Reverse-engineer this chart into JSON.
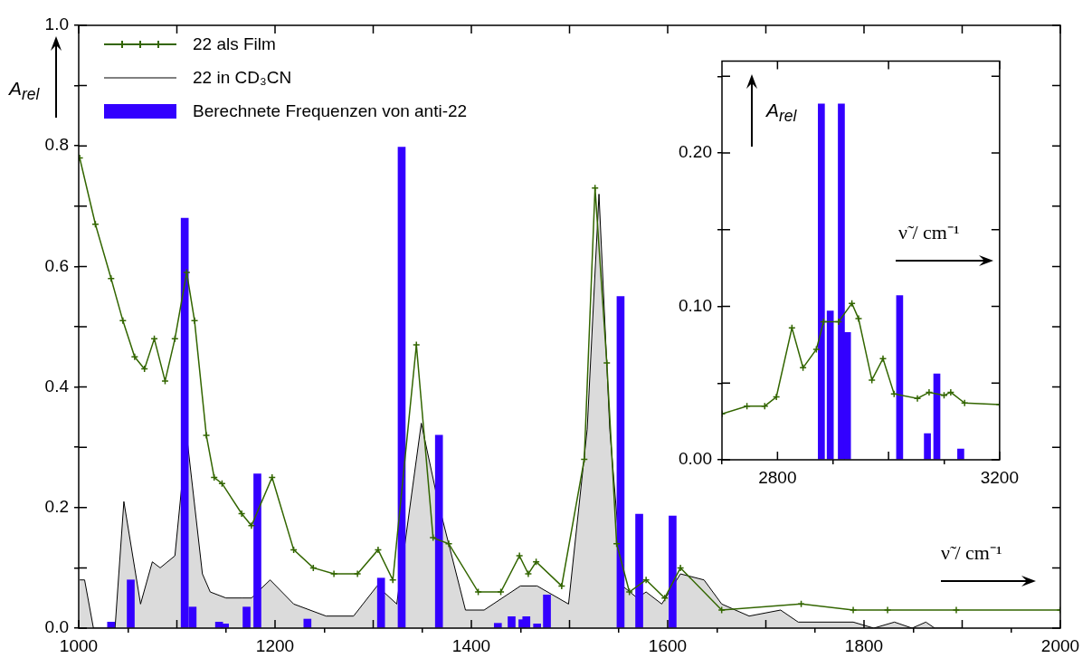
{
  "chart_data": [
    {
      "type": "line",
      "xlabel": "ν̃ / cm⁻¹",
      "ylabel": "A$_{rel}$",
      "legend": "top left",
      "marker": "cross",
      "grid": false,
      "xlim": [
        1000,
        2000
      ],
      "ylim": [
        0,
        1
      ],
      "xticks": [
        1000,
        {
          "value": 1100,
          "label": null
        },
        1200,
        {
          "value": 1300,
          "label": null
        },
        1400,
        {
          "value": 1500,
          "label": null
        },
        1600,
        {
          "value": 1700,
          "label": null
        },
        1800,
        {
          "value": 1900,
          "label": null
        },
        2000
      ],
      "yticks": [
        {
          "value": 0,
          "label": "0.0"
        },
        {
          "value": 0.1,
          "label": null
        },
        {
          "value": 0.2,
          "label": "0.2"
        },
        {
          "value": 0.3,
          "label": null
        },
        {
          "value": 0.4,
          "label": "0.4"
        },
        {
          "value": 0.5,
          "label": null
        },
        {
          "value": 0.6,
          "label": "0.6"
        },
        {
          "value": 0.7,
          "label": null
        },
        {
          "value": 0.8,
          "label": "0.8"
        },
        {
          "value": 0.9,
          "label": null
        },
        {
          "value": 1,
          "label": "1.0"
        }
      ],
      "series": [
        {
          "name": "22 als Film",
          "color": "#336600",
          "x": [
            1001,
            1017,
            1033,
            1045,
            1057,
            1067,
            1077,
            1088,
            1098,
            1110,
            1118,
            1130,
            1138,
            1146,
            1166,
            1176,
            1197,
            1219,
            1239,
            1260,
            1284,
            1305,
            1320,
            1344,
            1361,
            1377,
            1407,
            1430,
            1449,
            1458,
            1466,
            1492,
            1515,
            1526,
            1538,
            1548,
            1561,
            1578,
            1597,
            1613,
            1655,
            1736,
            1789,
            1824,
            1894,
            2000
          ],
          "values": [
            0.78,
            0.67,
            0.58,
            0.51,
            0.45,
            0.43,
            0.48,
            0.41,
            0.48,
            0.59,
            0.51,
            0.32,
            0.25,
            0.24,
            0.19,
            0.17,
            0.25,
            0.13,
            0.1,
            0.09,
            0.09,
            0.13,
            0.08,
            0.47,
            0.15,
            0.14,
            0.06,
            0.06,
            0.12,
            0.09,
            0.11,
            0.07,
            0.28,
            0.73,
            0.44,
            0.14,
            0.06,
            0.08,
            0.05,
            0.1,
            0.03,
            0.04,
            0.03,
            0.03,
            0.03,
            0.03
          ]
        },
        {
          "name": "22 in CD₃CN",
          "type": "area",
          "marker": "none",
          "color": "#000000",
          "x": [
            1001,
            1006,
            1015,
            1037,
            1046,
            1063,
            1075,
            1083,
            1098,
            1110,
            1126,
            1134,
            1150,
            1166,
            1176,
            1195,
            1219,
            1252,
            1280,
            1304,
            1324,
            1349,
            1366,
            1394,
            1413,
            1450,
            1467,
            1499,
            1518,
            1530,
            1541,
            1554,
            1569,
            1578,
            1594,
            1613,
            1637,
            1655,
            1683,
            1715,
            1733,
            1789,
            1810,
            1831,
            1849,
            1863,
            1872,
            1900
          ],
          "values": [
            0.08,
            0.08,
            0,
            0,
            0.21,
            0.04,
            0.11,
            0.1,
            0.12,
            0.32,
            0.09,
            0.06,
            0.05,
            0.05,
            0.05,
            0.08,
            0.04,
            0.02,
            0.02,
            0.07,
            0.04,
            0.34,
            0.21,
            0.03,
            0.03,
            0.07,
            0.07,
            0.04,
            0.33,
            0.72,
            0.33,
            0.07,
            0.05,
            0.06,
            0.04,
            0.09,
            0.08,
            0.04,
            0.02,
            0.03,
            0.01,
            0.01,
            0,
            0.01,
            0,
            0.01,
            0,
            0
          ]
        },
        {
          "name": "Berechnete Frequenzen von anti-22",
          "type": "bar",
          "color": "#3300ff",
          "x": [
            1033,
            1053,
            1108,
            1116,
            1143,
            1149,
            1171,
            1182,
            1233,
            1308,
            1329,
            1367,
            1427,
            1441,
            1452,
            1456,
            1467,
            1477,
            1552,
            1571,
            1605
          ],
          "values": [
            0.01,
            0.08,
            0.68,
            0.035,
            0.01,
            0.007,
            0.035,
            0.256,
            0.015,
            0.083,
            0.798,
            0.32,
            0.008,
            0.019,
            0.014,
            0.019,
            0.007,
            0.055,
            0.55,
            0.189,
            0.186
          ]
        }
      ]
    },
    {
      "type": "line",
      "xlabel": "ν̃ / cm⁻¹",
      "ylabel": "A$_{rel}$",
      "marker": "cross",
      "grid": false,
      "xlim": [
        2700,
        3200
      ],
      "ylim": [
        0,
        0.26
      ],
      "xticks": [
        2800,
        {
          "value": 3000,
          "label": null
        },
        3200
      ],
      "yticks": [
        {
          "value": 0,
          "label": "0.00"
        },
        {
          "value": 0.05,
          "label": null
        },
        {
          "value": 0.1,
          "label": "0.10"
        },
        {
          "value": 0.15,
          "label": null
        },
        {
          "value": 0.2,
          "label": "0.20"
        },
        {
          "value": 0.25,
          "label": null
        }
      ],
      "series": [
        {
          "color": "#336600",
          "x": [
            2700,
            2745,
            2777,
            2798,
            2826,
            2846,
            2870,
            2883,
            2910,
            2934,
            2946,
            2970,
            2990,
            3010,
            3052,
            3073,
            3100,
            3112,
            3137,
            3200
          ],
          "values": [
            0.03,
            0.035,
            0.035,
            0.041,
            0.086,
            0.06,
            0.072,
            0.09,
            0.09,
            0.102,
            0.092,
            0.052,
            0.066,
            0.043,
            0.04,
            0.044,
            0.042,
            0.044,
            0.037,
            0.036
          ]
        },
        {
          "type": "bar",
          "color": "#3300ff",
          "x": [
            2879,
            2895,
            2915,
            2926,
            3020,
            3070,
            3087,
            3130
          ],
          "values": [
            0.232,
            0.097,
            0.232,
            0.083,
            0.107,
            0.017,
            0.056,
            0.007
          ]
        }
      ]
    }
  ]
}
